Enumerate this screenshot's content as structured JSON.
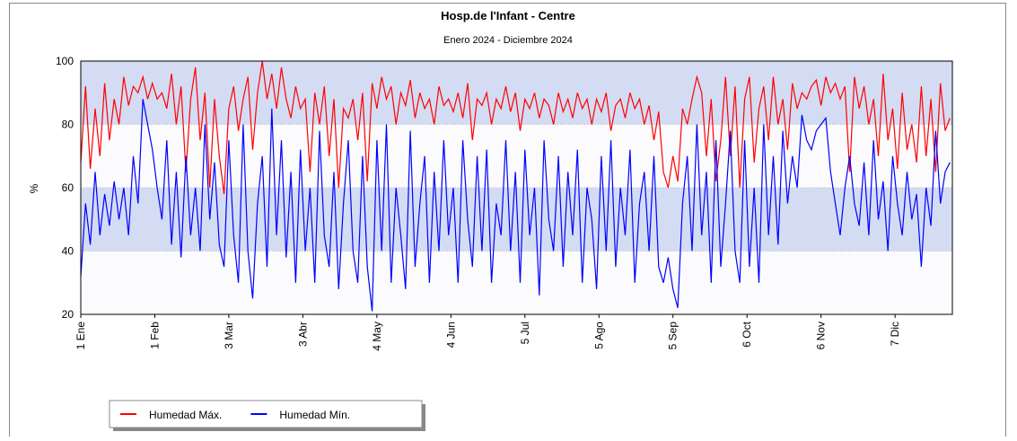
{
  "chart_data": {
    "type": "line",
    "title": "Hosp.de l'Infant - Centre",
    "subtitle": "Enero 2024 - Diciembre 2024",
    "y_label": "%",
    "x": [
      1,
      3,
      5,
      7,
      9,
      11,
      13,
      15,
      17,
      19,
      21,
      23,
      25,
      27,
      29,
      31,
      33,
      35,
      37,
      39,
      41,
      43,
      45,
      47,
      49,
      51,
      53,
      55,
      57,
      59,
      61,
      63,
      65,
      67,
      69,
      71,
      73,
      75,
      77,
      79,
      81,
      83,
      85,
      87,
      89,
      91,
      93,
      95,
      97,
      99,
      101,
      103,
      105,
      107,
      109,
      111,
      113,
      115,
      117,
      119,
      121,
      123,
      125,
      127,
      129,
      131,
      133,
      135,
      137,
      139,
      141,
      143,
      145,
      147,
      149,
      151,
      153,
      155,
      157,
      159,
      161,
      163,
      165,
      167,
      169,
      171,
      173,
      175,
      177,
      179,
      181,
      183,
      185,
      187,
      189,
      191,
      193,
      195,
      197,
      199,
      201,
      203,
      205,
      207,
      209,
      211,
      213,
      215,
      217,
      219,
      221,
      223,
      225,
      227,
      229,
      231,
      233,
      235,
      237,
      239,
      241,
      243,
      245,
      247,
      249,
      251,
      253,
      255,
      257,
      259,
      261,
      263,
      265,
      267,
      269,
      271,
      273,
      275,
      277,
      279,
      281,
      283,
      285,
      287,
      289,
      291,
      293,
      295,
      297,
      299,
      301,
      303,
      305,
      307,
      309,
      311,
      313,
      315,
      317,
      319,
      321,
      323,
      325,
      327,
      329,
      331,
      333,
      335,
      337,
      339,
      341,
      343,
      345,
      347,
      349,
      351,
      353,
      355,
      357,
      359,
      361,
      363,
      365
    ],
    "series": [
      {
        "name": "Humedad Máx.",
        "color": "#ff0000",
        "values": [
          68,
          92,
          66,
          85,
          70,
          93,
          75,
          88,
          80,
          95,
          86,
          92,
          90,
          95,
          88,
          93,
          88,
          90,
          85,
          96,
          80,
          92,
          65,
          88,
          98,
          75,
          90,
          60,
          88,
          70,
          58,
          85,
          92,
          78,
          88,
          95,
          72,
          90,
          100,
          88,
          96,
          85,
          98,
          88,
          82,
          92,
          85,
          88,
          65,
          90,
          80,
          92,
          70,
          88,
          60,
          85,
          82,
          88,
          75,
          90,
          62,
          93,
          85,
          95,
          88,
          92,
          80,
          90,
          86,
          94,
          82,
          90,
          85,
          88,
          80,
          92,
          86,
          88,
          84,
          90,
          82,
          93,
          75,
          88,
          86,
          90,
          80,
          88,
          85,
          92,
          84,
          90,
          78,
          88,
          85,
          90,
          82,
          88,
          86,
          80,
          90,
          84,
          88,
          82,
          90,
          85,
          88,
          80,
          88,
          84,
          90,
          78,
          86,
          88,
          82,
          90,
          85,
          88,
          80,
          86,
          75,
          84,
          65,
          60,
          70,
          62,
          85,
          80,
          88,
          95,
          90,
          70,
          88,
          62,
          75,
          95,
          70,
          92,
          60,
          88,
          95,
          68,
          85,
          92,
          75,
          95,
          80,
          88,
          72,
          93,
          85,
          90,
          88,
          92,
          94,
          86,
          95,
          90,
          93,
          88,
          92,
          65,
          95,
          85,
          92,
          80,
          88,
          70,
          96,
          75,
          85,
          66,
          90,
          72,
          80,
          68,
          92,
          70,
          88,
          65,
          93,
          78,
          82
        ]
      },
      {
        "name": "Humedad Mín.",
        "color": "#0000ff",
        "values": [
          32,
          55,
          42,
          65,
          45,
          58,
          48,
          62,
          50,
          60,
          45,
          70,
          55,
          88,
          80,
          72,
          60,
          50,
          75,
          42,
          65,
          38,
          70,
          45,
          60,
          40,
          80,
          50,
          68,
          42,
          35,
          75,
          45,
          30,
          80,
          40,
          25,
          55,
          70,
          35,
          85,
          45,
          75,
          38,
          65,
          30,
          72,
          40,
          60,
          30,
          78,
          45,
          35,
          65,
          28,
          55,
          75,
          40,
          30,
          70,
          35,
          21,
          75,
          40,
          80,
          30,
          60,
          45,
          28,
          78,
          35,
          55,
          70,
          30,
          65,
          40,
          75,
          45,
          60,
          30,
          75,
          50,
          35,
          70,
          40,
          72,
          30,
          55,
          45,
          75,
          40,
          65,
          30,
          72,
          45,
          60,
          26,
          75,
          50,
          40,
          70,
          35,
          65,
          45,
          72,
          30,
          60,
          50,
          28,
          70,
          40,
          75,
          35,
          60,
          45,
          72,
          30,
          55,
          65,
          40,
          70,
          35,
          30,
          38,
          28,
          22,
          55,
          70,
          40,
          80,
          45,
          65,
          30,
          75,
          35,
          55,
          78,
          40,
          30,
          75,
          35,
          60,
          30,
          80,
          45,
          70,
          42,
          78,
          55,
          70,
          60,
          83,
          75,
          72,
          78,
          80,
          82,
          65,
          55,
          45,
          60,
          70,
          55,
          48,
          68,
          45,
          75,
          50,
          62,
          40,
          70,
          55,
          45,
          65,
          50,
          58,
          35,
          60,
          48,
          78,
          55,
          65,
          68
        ]
      }
    ],
    "xlim": [
      1,
      366
    ],
    "xticks": [
      {
        "value": 1,
        "label": "1 Ene"
      },
      {
        "value": 32,
        "label": "1 Feb"
      },
      {
        "value": 63,
        "label": "3 Mar"
      },
      {
        "value": 94,
        "label": "3 Abr"
      },
      {
        "value": 125,
        "label": "4 May"
      },
      {
        "value": 156,
        "label": "4 Jun"
      },
      {
        "value": 187,
        "label": "5 Jul"
      },
      {
        "value": 218,
        "label": "5 Ago"
      },
      {
        "value": 249,
        "label": "5 Sep"
      },
      {
        "value": 280,
        "label": "6 Oct"
      },
      {
        "value": 311,
        "label": "6 Nov"
      },
      {
        "value": 342,
        "label": "7 Dic"
      }
    ],
    "ylim": [
      20,
      100
    ],
    "yticks": [
      20,
      40,
      60,
      80,
      100
    ],
    "band_color": "#d4dcf4",
    "legend": "bottom-left"
  }
}
